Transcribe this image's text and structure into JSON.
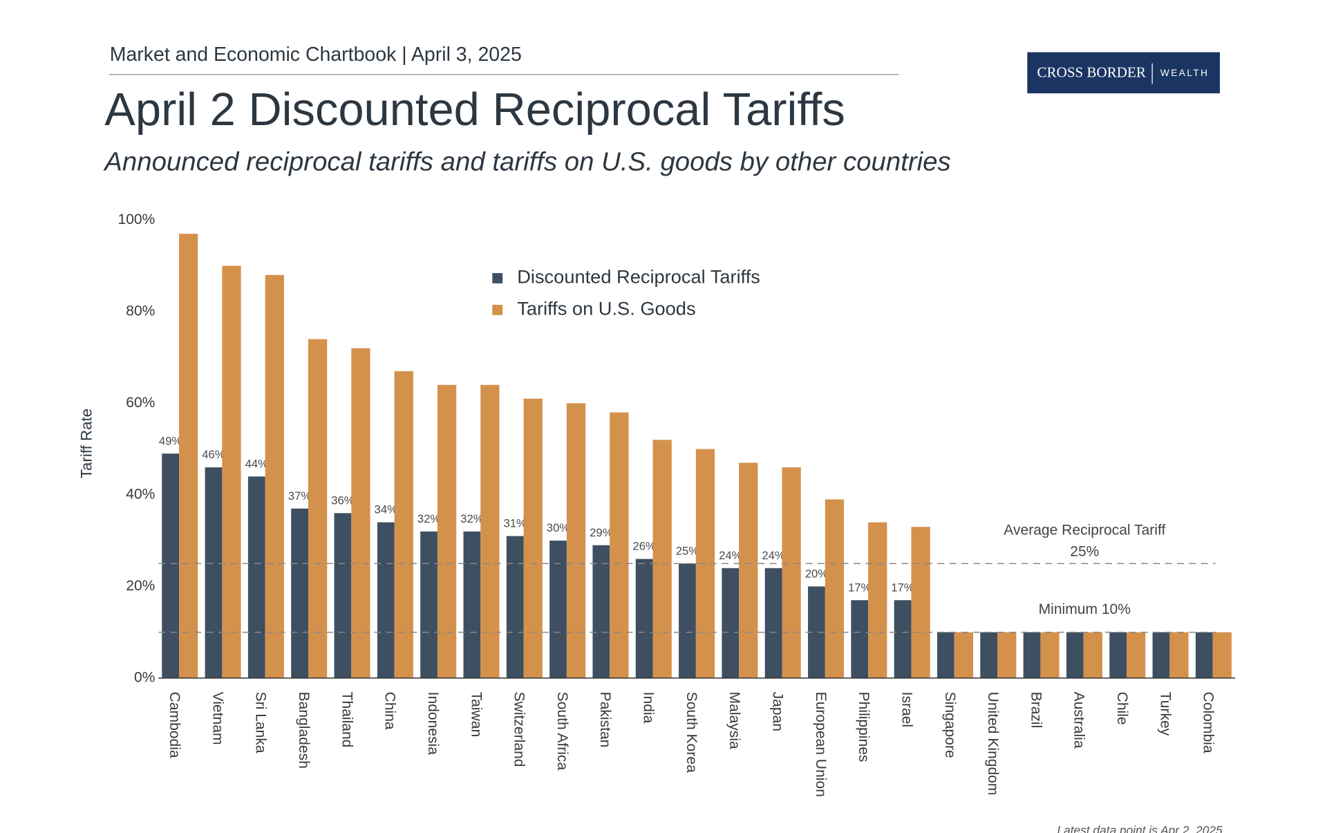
{
  "header": {
    "text": "Market and Economic Chartbook | April 3, 2025"
  },
  "logo": {
    "name": "CROSS BORDER",
    "suffix": "WEALTH"
  },
  "chart_data": {
    "type": "bar",
    "title": "April 2 Discounted Reciprocal Tariffs",
    "subtitle": "Announced reciprocal tariffs and tariffs on U.S. goods by other countries",
    "y_label": "Tariff Rate",
    "categories": [
      "Cambodia",
      "Vietnam",
      "Sri Lanka",
      "Bangladesh",
      "Thailand",
      "China",
      "Indonesia",
      "Taiwan",
      "Switzerland",
      "South Africa",
      "Pakistan",
      "India",
      "South Korea",
      "Malaysia",
      "Japan",
      "European Union",
      "Philippines",
      "Israel",
      "Singapore",
      "United Kingdom",
      "Brazil",
      "Australia",
      "Chile",
      "Turkey",
      "Colombia"
    ],
    "series": [
      {
        "name": "Discounted Reciprocal Tariffs",
        "color": "#3d4f60",
        "values": [
          49,
          46,
          44,
          37,
          36,
          34,
          32,
          32,
          31,
          30,
          29,
          26,
          25,
          24,
          24,
          20,
          17,
          17,
          10,
          10,
          10,
          10,
          10,
          10,
          10
        ],
        "value_labels": [
          "49%",
          "46%",
          "44%",
          "37%",
          "36%",
          "34%",
          "32%",
          "32%",
          "31%",
          "30%",
          "29%",
          "26%",
          "25%",
          "24%",
          "24%",
          "20%",
          "17%",
          "17%",
          null,
          null,
          null,
          null,
          null,
          null,
          null
        ]
      },
      {
        "name": "Tariffs on U.S. Goods",
        "color": "#d4914c",
        "values": [
          97,
          90,
          88,
          74,
          72,
          67,
          64,
          64,
          61,
          60,
          58,
          52,
          50,
          47,
          46,
          39,
          34,
          33,
          10,
          10,
          10,
          10,
          10,
          10,
          10
        ]
      }
    ],
    "ylim": [
      0,
      100
    ],
    "yticks": [
      {
        "value": 0,
        "label": "0%"
      },
      {
        "value": 20,
        "label": "20%"
      },
      {
        "value": 40,
        "label": "40%"
      },
      {
        "value": 60,
        "label": "60%"
      },
      {
        "value": 80,
        "label": "80%"
      },
      {
        "value": 100,
        "label": "100%"
      }
    ],
    "reference_lines": [
      {
        "value": 25,
        "label": "Average Reciprocal Tariff",
        "value_label": "25%"
      },
      {
        "value": 10,
        "label": "Minimum 10%"
      }
    ],
    "grid": false,
    "legend": "top-center",
    "footnote": "Latest data point is Apr 2, 2025"
  }
}
